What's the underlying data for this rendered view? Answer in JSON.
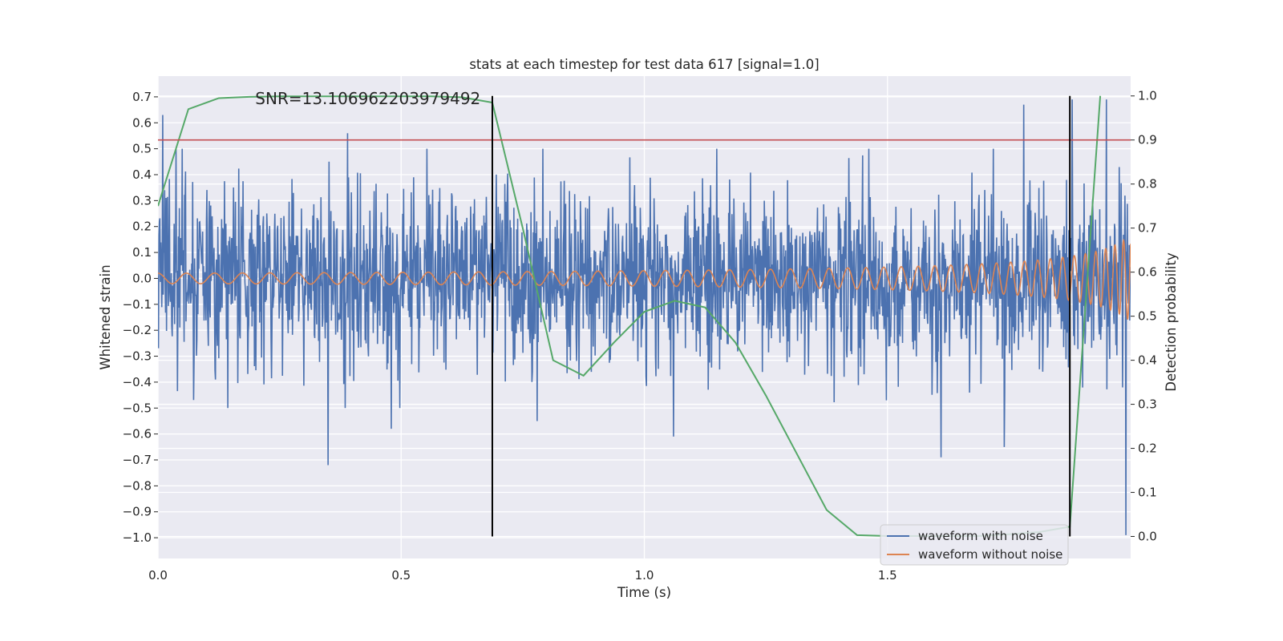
{
  "chart_data": {
    "type": "line",
    "title": "stats at each timestep for test data 617 [signal=1.0]",
    "xlabel": "Time (s)",
    "ylabel": "Whitened strain",
    "y2label": "Detection probability",
    "xlim": [
      0,
      2.0
    ],
    "ylim": [
      -1.08,
      0.78
    ],
    "y2lim": [
      -0.05,
      1.045
    ],
    "x_ticks": [
      0.0,
      0.5,
      1.0,
      1.5
    ],
    "x_tick_labels": [
      "0.0",
      "0.5",
      "1.0",
      "1.5"
    ],
    "y_ticks": [
      0.7,
      0.6,
      0.5,
      0.4,
      0.3,
      0.2,
      0.1,
      0.0,
      -0.1,
      -0.2,
      -0.3,
      -0.4,
      -0.5,
      -0.6,
      -0.7,
      -0.8,
      -0.9,
      -1.0
    ],
    "y_tick_labels": [
      "0.7",
      "0.6",
      "0.5",
      "0.4",
      "0.3",
      "0.2",
      "0.1",
      "0.0",
      "−0.1",
      "−0.2",
      "−0.3",
      "−0.4",
      "−0.5",
      "−0.6",
      "−0.7",
      "−0.8",
      "−0.9",
      "−1.0"
    ],
    "y2_ticks": [
      1.0,
      0.9,
      0.8,
      0.7,
      0.6,
      0.5,
      0.4,
      0.3,
      0.2,
      0.1,
      0.0
    ],
    "y2_tick_labels": [
      "1.0",
      "0.9",
      "0.8",
      "0.7",
      "0.6",
      "0.5",
      "0.4",
      "0.3",
      "0.2",
      "0.1",
      "0.0"
    ],
    "grid": true,
    "legend_position": "lower-right",
    "annotation": "SNR=13.106962203979492",
    "annotation_position": {
      "x": 0.2,
      "y": 0.69
    },
    "series": [
      {
        "name": "waveform with noise",
        "axis": "left",
        "color": "#4c72b0",
        "kind": "noise",
        "n_samples": 2048,
        "amplitude_std": 0.17,
        "peaks": [
          [
            0.01,
            0.63
          ],
          [
            0.35,
            -0.72
          ],
          [
            0.39,
            0.56
          ],
          [
            0.48,
            -0.58
          ],
          [
            0.78,
            -0.55
          ],
          [
            1.06,
            -0.61
          ],
          [
            1.78,
            0.67
          ],
          [
            1.88,
            0.69
          ],
          [
            1.95,
            0.69
          ],
          [
            1.99,
            -0.99
          ],
          [
            1.61,
            -0.69
          ],
          [
            1.74,
            -0.65
          ]
        ]
      },
      {
        "name": "waveform without noise",
        "axis": "left",
        "color": "#dd8452",
        "kind": "chirp",
        "f0": 17,
        "f_end": 60,
        "t_coalesce": 2.06,
        "a0": 0.02,
        "a_end": 0.3
      },
      {
        "name": "detection probability",
        "axis": "right",
        "color": "#55a868",
        "x": [
          0.0,
          0.0625,
          0.125,
          0.1875,
          0.25,
          0.3125,
          0.375,
          0.4375,
          0.5,
          0.5625,
          0.625,
          0.6875,
          0.75,
          0.8125,
          0.875,
          0.9375,
          1.0,
          1.0625,
          1.125,
          1.1875,
          1.25,
          1.3125,
          1.375,
          1.4375,
          1.5,
          1.5625,
          1.625,
          1.6875,
          1.75,
          1.8125,
          1.875,
          1.9375
        ],
        "values": [
          0.75,
          0.97,
          0.995,
          0.998,
          0.999,
          0.999,
          0.999,
          0.999,
          0.999,
          0.999,
          0.997,
          0.985,
          0.7,
          0.4,
          0.365,
          0.44,
          0.51,
          0.535,
          0.52,
          0.44,
          0.32,
          0.19,
          0.06,
          0.003,
          0.001,
          0.001,
          0.001,
          0.001,
          0.005,
          0.01,
          0.022,
          1.0
        ]
      },
      {
        "name": "threshold",
        "axis": "right",
        "color": "#c44e52",
        "value": 0.9
      }
    ],
    "vlines": [
      0.6875,
      1.875
    ],
    "legend": [
      {
        "label": "waveform with noise",
        "color": "#4c72b0"
      },
      {
        "label": "waveform without noise",
        "color": "#dd8452"
      }
    ]
  },
  "colors": {
    "plot_background": "#eaeaf2",
    "grid": "#ffffff",
    "vline": "#000000",
    "text": "#262626"
  }
}
